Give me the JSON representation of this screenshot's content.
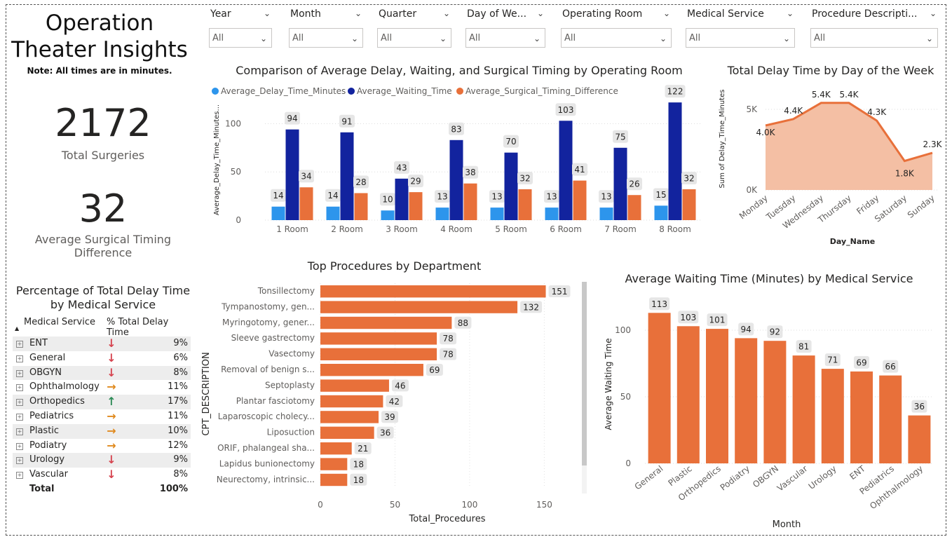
{
  "header": {
    "title_line1": "Operation",
    "title_line2": "Theater Insights",
    "note": "Note: All times are in minutes."
  },
  "kpis": [
    {
      "value": "2172",
      "label": "Total Surgeries"
    },
    {
      "value": "32",
      "label": "Average Surgical Timing Difference"
    }
  ],
  "slicers": [
    {
      "label": "Year",
      "value": "All"
    },
    {
      "label": "Month",
      "value": "All"
    },
    {
      "label": "Quarter",
      "value": "All"
    },
    {
      "label": "Day of We...",
      "value": "All"
    },
    {
      "label": "Operating Room",
      "value": "All"
    },
    {
      "label": "Medical Service",
      "value": "All"
    },
    {
      "label": "Procedure Descripti...",
      "value": "All"
    }
  ],
  "colors": {
    "orange": "#e8703a",
    "lightblue": "#2d95ec",
    "navy": "#12239e",
    "area": "#f4bfa4",
    "up": "#2e8b57",
    "down": "#d64550",
    "side": "#e08a1e"
  },
  "table": {
    "title_line1": "Percentage of Total Delay Time",
    "title_line2": "by Medical Service",
    "col1": "Medical Service",
    "col2": "% Total Delay Time",
    "rows": [
      {
        "service": "ENT",
        "pct": "9%",
        "trend": "down"
      },
      {
        "service": "General",
        "pct": "6%",
        "trend": "down"
      },
      {
        "service": "OBGYN",
        "pct": "8%",
        "trend": "down"
      },
      {
        "service": "Ophthalmology",
        "pct": "11%",
        "trend": "side"
      },
      {
        "service": "Orthopedics",
        "pct": "17%",
        "trend": "up"
      },
      {
        "service": "Pediatrics",
        "pct": "11%",
        "trend": "side"
      },
      {
        "service": "Plastic",
        "pct": "10%",
        "trend": "side"
      },
      {
        "service": "Podiatry",
        "pct": "12%",
        "trend": "side"
      },
      {
        "service": "Urology",
        "pct": "9%",
        "trend": "down"
      },
      {
        "service": "Vascular",
        "pct": "8%",
        "trend": "down"
      }
    ],
    "total_label": "Total",
    "total_value": "100%"
  },
  "chart_data": [
    {
      "id": "room",
      "type": "bar",
      "title": "Comparison of Average Delay, Waiting, and Surgical Timing by Operating Room",
      "categories": [
        "1 Room",
        "2 Room",
        "3 Room",
        "4 Room",
        "5 Room",
        "6 Room",
        "7 Room",
        "8 Room"
      ],
      "series": [
        {
          "name": "Average_Delay_Time_Minutes",
          "values": [
            14,
            14,
            10,
            13,
            13,
            13,
            13,
            15
          ]
        },
        {
          "name": "Average_Waiting_Time",
          "values": [
            94,
            91,
            43,
            83,
            70,
            103,
            75,
            122
          ]
        },
        {
          "name": "Average_Surgical_Timing_Difference",
          "values": [
            34,
            28,
            29,
            38,
            32,
            41,
            26,
            32
          ]
        }
      ],
      "ylabel": "Average_Delay_Time_Minutes...",
      "ylim": [
        0,
        125
      ],
      "yticks": [
        0,
        50,
        100
      ]
    },
    {
      "id": "day",
      "type": "area",
      "title": "Total Delay Time by Day of the Week",
      "categories": [
        "Monday",
        "Tuesday",
        "Wednesday",
        "Thursday",
        "Friday",
        "Saturday",
        "Sunday"
      ],
      "values": [
        4.0,
        4.4,
        5.4,
        5.4,
        4.3,
        1.8,
        2.3
      ],
      "labels": [
        "4.0K",
        "4.4K",
        "5.4K",
        "5.4K",
        "4.3K",
        "1.8K",
        "2.3K"
      ],
      "ylabel": "Sum of Delay_Time_Minutes",
      "xlabel": "Day_Name",
      "ylim": [
        0,
        6
      ],
      "yticks": [
        0,
        5
      ],
      "ytick_labels": [
        "0K",
        "5K"
      ]
    },
    {
      "id": "proc",
      "type": "bar",
      "orientation": "horizontal",
      "title": "Top Procedures by Department",
      "categories": [
        "Tonsillectomy",
        "Tympanostomy, gen...",
        "Myringotomy, gener...",
        "Sleeve gastrectomy",
        "Vasectomy",
        "Removal of benign s...",
        "Septoplasty",
        "Plantar fasciotomy",
        "Laparoscopic cholecy...",
        "Liposuction",
        "ORIF, phalangeal sha...",
        "Lapidus bunionectomy",
        "Neurectomy, intrinsic..."
      ],
      "values": [
        151,
        132,
        88,
        78,
        78,
        69,
        46,
        42,
        39,
        36,
        21,
        18,
        18
      ],
      "xlabel": "Total_Procedures",
      "ylabel": "CPT_DESCRIPTION",
      "xlim": [
        0,
        170
      ],
      "xticks": [
        0,
        50,
        100,
        150
      ]
    },
    {
      "id": "wait",
      "type": "bar",
      "title": "Average Waiting Time (Minutes) by Medical Service",
      "categories": [
        "General",
        "Plastic",
        "Orthopedics",
        "Podiatry",
        "OBGYN",
        "Vascular",
        "Urology",
        "ENT",
        "Pediatrics",
        "Ophthalmology"
      ],
      "values": [
        113,
        103,
        101,
        94,
        92,
        81,
        71,
        69,
        66,
        36
      ],
      "xlabel": "Month",
      "ylabel": "Average Waiting Time",
      "ylim": [
        0,
        120
      ],
      "yticks": [
        0,
        50,
        100
      ]
    }
  ]
}
